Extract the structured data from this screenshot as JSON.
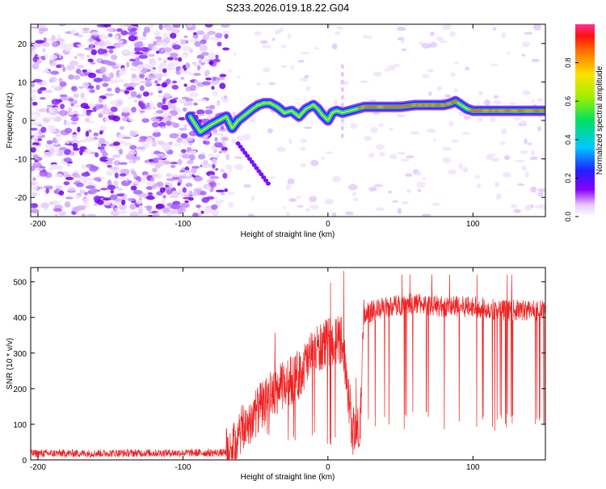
{
  "figure_title": "S233.2026.019.18.22.G04",
  "chart_data": [
    {
      "type": "heatmap",
      "xlabel": "Height of straight line (km)",
      "ylabel": "Frequency (Hz)",
      "xlim": [
        -205,
        150
      ],
      "ylim": [
        -25,
        25
      ],
      "x_ticks": [
        -200,
        -100,
        0,
        100
      ],
      "y_ticks": [
        -20,
        -10,
        0,
        10,
        20
      ],
      "colorbar": {
        "label": "Normalized spectral amplitude",
        "range": [
          0,
          1
        ],
        "ticks": [
          0.0,
          0.2,
          0.4,
          0.6,
          0.8
        ],
        "tick_labels": [
          "0.0",
          "0.2",
          "0.4",
          "0.6",
          "0.8"
        ]
      },
      "ridge": {
        "x": [
          -95,
          -88,
          -80,
          -75,
          -70,
          -66,
          -62,
          -57,
          -52,
          -48,
          -44,
          -40,
          -35,
          -30,
          -25,
          -20,
          -15,
          -10,
          -7,
          -4,
          0,
          3,
          6,
          10,
          15,
          20,
          25,
          30,
          40,
          50,
          60,
          70,
          80,
          85,
          88,
          92,
          96,
          100,
          110,
          120,
          130,
          140,
          150
        ],
        "y": [
          1,
          -3,
          -1,
          0,
          1,
          -2,
          0,
          1.5,
          3,
          4,
          4.5,
          4.5,
          3.5,
          2,
          2.5,
          1,
          3,
          4,
          3,
          1.5,
          0,
          2,
          2.5,
          2,
          2.5,
          3,
          3.5,
          3.5,
          3.5,
          3.5,
          4,
          4,
          4,
          4.5,
          5,
          4,
          3,
          2.5,
          2.5,
          2.5,
          2.5,
          2.5,
          2.5
        ]
      }
    },
    {
      "type": "line",
      "xlabel": "Height of straight line (km)",
      "ylabel": "SNR (10 * v/v)",
      "xlim": [
        -205,
        150
      ],
      "ylim": [
        0,
        540
      ],
      "x_ticks": [
        -200,
        -100,
        0,
        100
      ],
      "y_ticks": [
        0,
        100,
        200,
        300,
        400,
        500
      ],
      "series": [
        {
          "name": "SNR",
          "color": "#ee2222",
          "envelope_x": [
            -205,
            -70,
            -65,
            -60,
            -50,
            -40,
            -30,
            -20,
            -10,
            0,
            10,
            17,
            20,
            22,
            25,
            40,
            60,
            80,
            100,
            120,
            150
          ],
          "envelope_y": [
            18,
            20,
            35,
            80,
            130,
            180,
            210,
            240,
            300,
            330,
            340,
            80,
            80,
            80,
            410,
            430,
            440,
            430,
            430,
            420,
            420
          ]
        }
      ]
    }
  ]
}
